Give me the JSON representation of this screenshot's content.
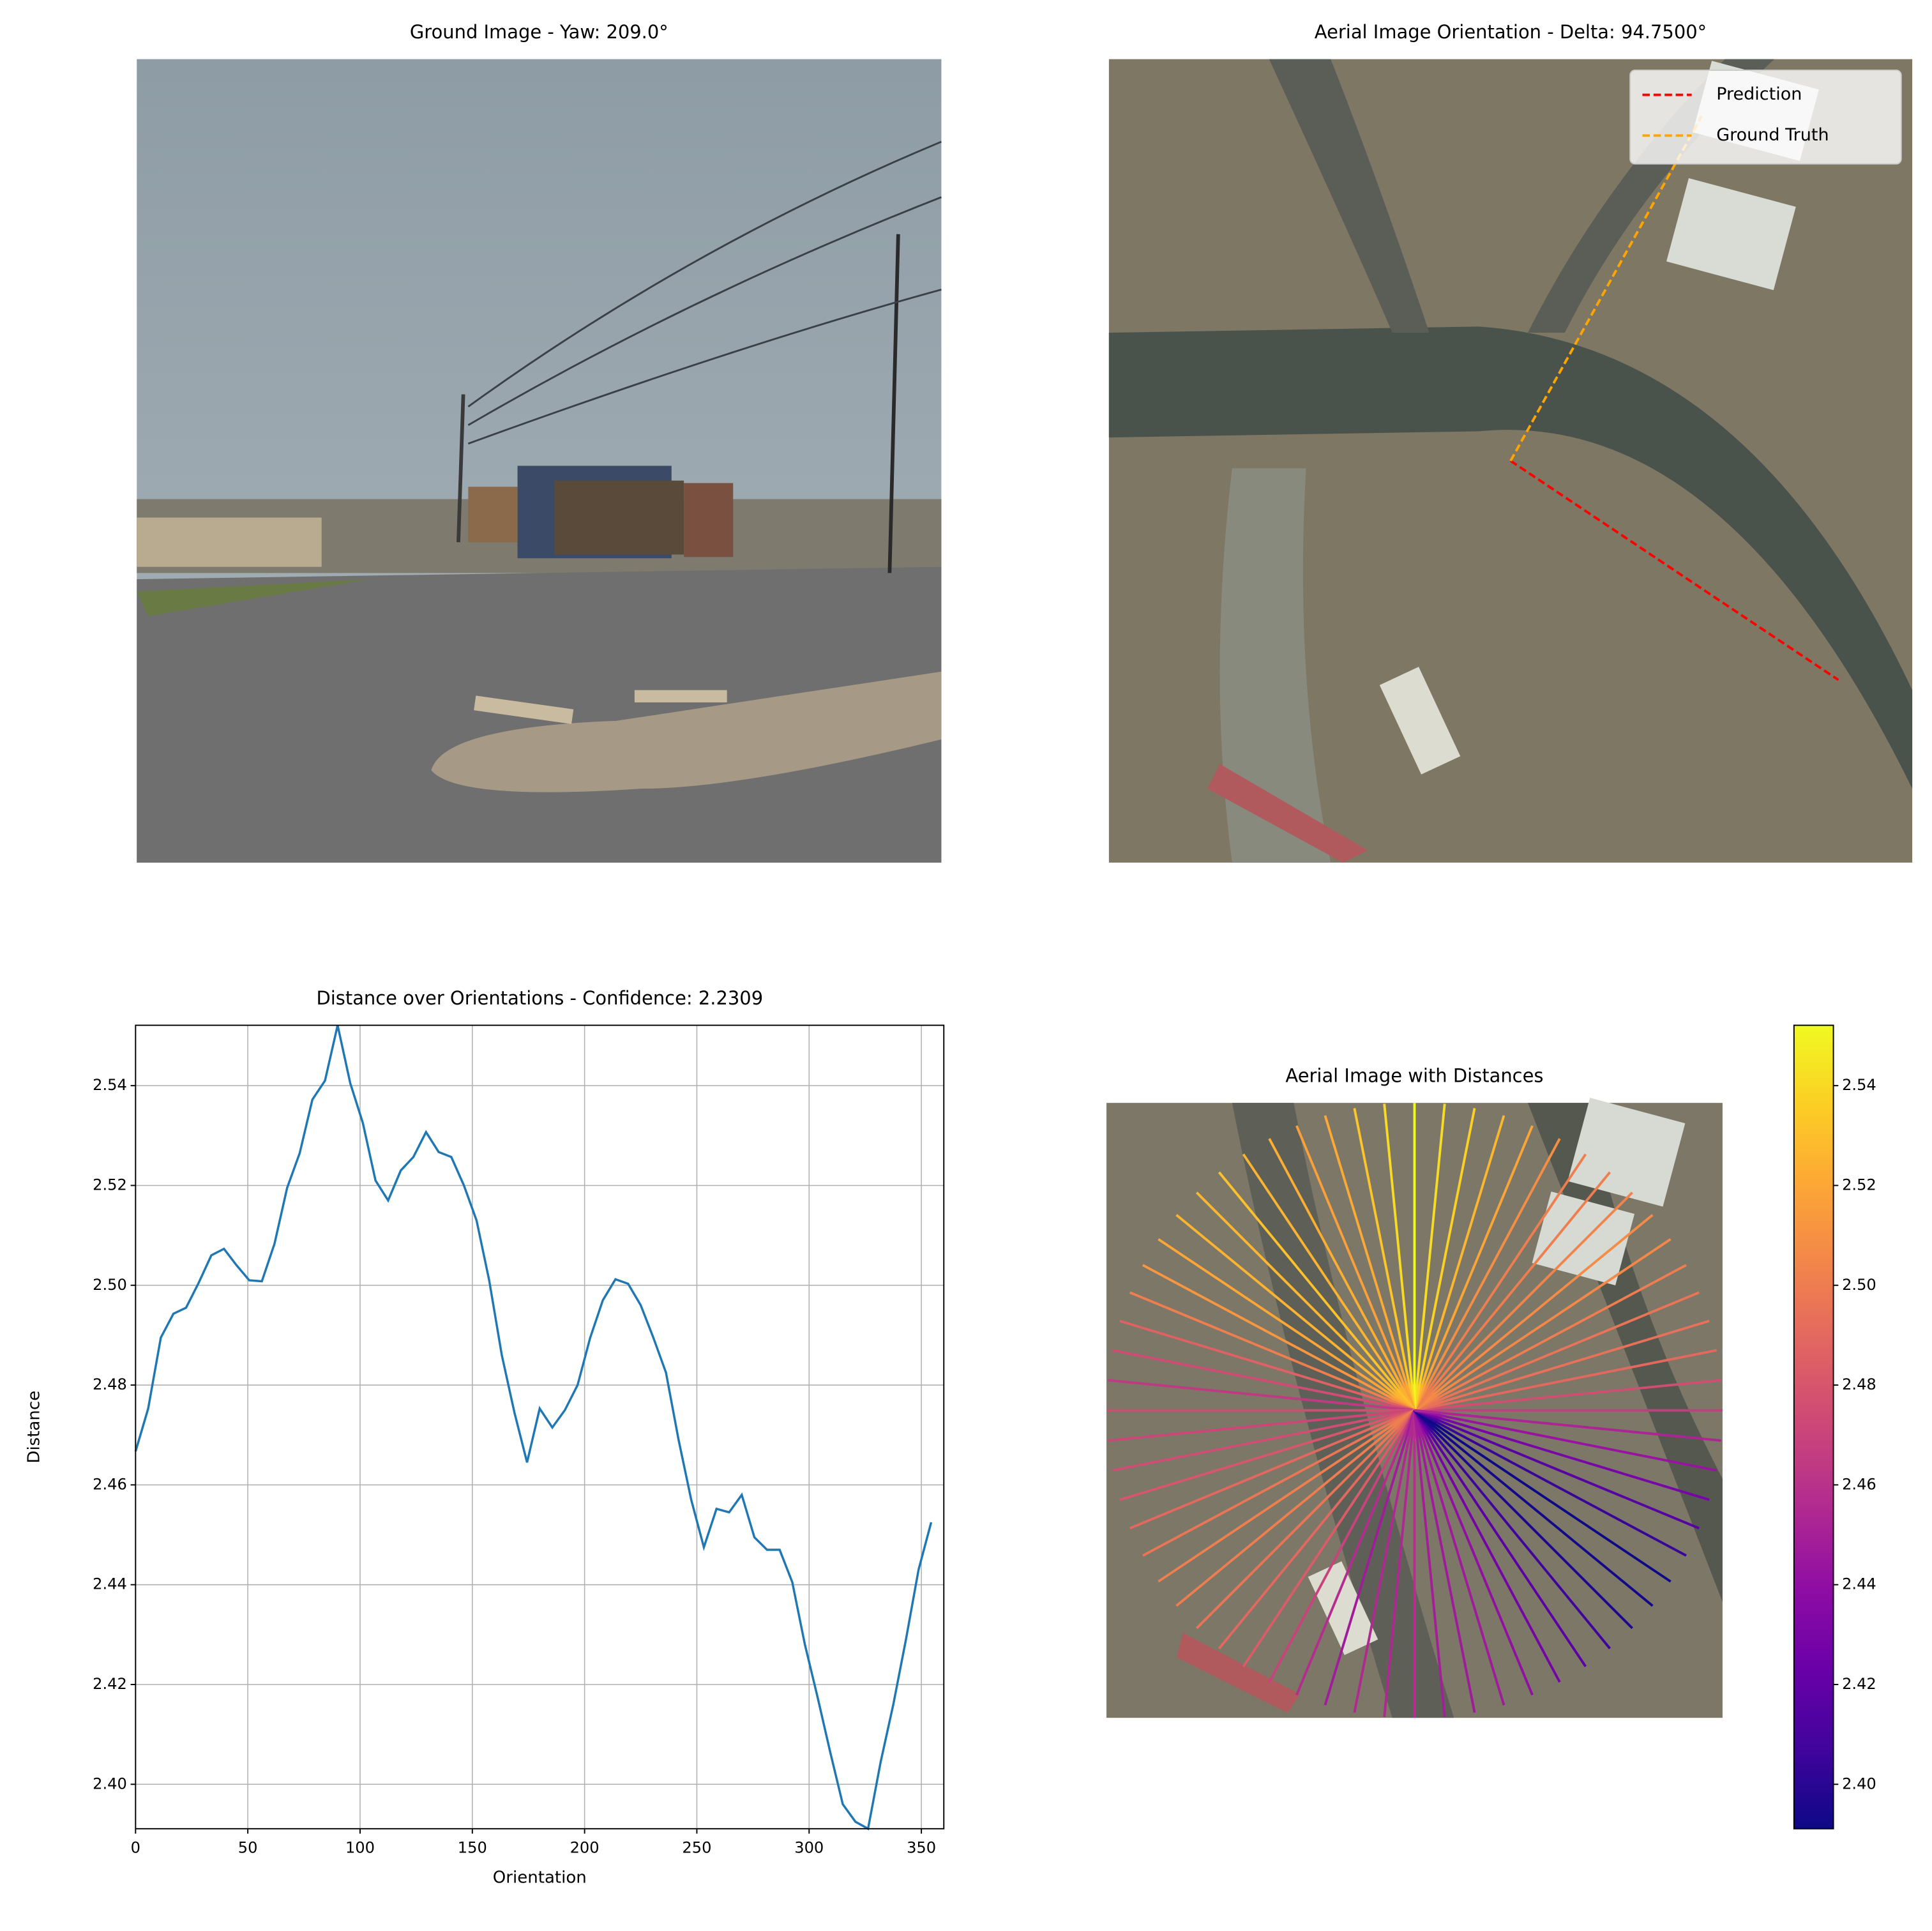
{
  "chart_data": [
    {
      "type": "image",
      "title": "Ground Image - Yaw: 209.0°"
    },
    {
      "type": "image",
      "title": "Aerial Image Orientation - Delta: 94.7500°",
      "legend": "upper right",
      "series": [
        {
          "name": "Prediction",
          "color": "#ff0000",
          "linestyle": "dashed",
          "angle": 326.25
        },
        {
          "name": "Ground Truth",
          "color": "#ffa500",
          "linestyle": "dashed",
          "angle": 61
        }
      ]
    },
    {
      "type": "line",
      "title": "Distance over Orientations - Confidence: 2.2309",
      "x_label": "Orientation",
      "y_label": "Distance",
      "grid": true,
      "xlim": [
        0,
        360
      ],
      "xticks": [
        0,
        50,
        100,
        150,
        200,
        250,
        300,
        350
      ],
      "ylim": [
        2.3911,
        2.5521
      ],
      "yticks": [
        {
          "value": 2.4,
          "label": "2.40"
        },
        2.42,
        2.44,
        2.46,
        2.48,
        {
          "value": 2.5,
          "label": "2.50"
        },
        2.52,
        2.54
      ],
      "x": [
        0,
        5.625,
        11.25,
        16.875,
        22.5,
        28.125,
        33.75,
        39.375,
        45,
        50.625,
        56.25,
        61.875,
        67.5,
        73.125,
        78.75,
        84.375,
        90,
        95.625,
        101.25,
        106.875,
        112.5,
        118.125,
        123.75,
        129.375,
        135,
        140.625,
        146.25,
        151.875,
        157.5,
        163.125,
        168.75,
        174.375,
        180,
        185.625,
        191.25,
        196.875,
        202.5,
        208.125,
        213.75,
        219.375,
        225,
        230.625,
        236.25,
        241.875,
        247.5,
        253.125,
        258.75,
        264.375,
        270,
        275.625,
        281.25,
        286.875,
        292.5,
        298.125,
        303.75,
        309.375,
        315,
        320.625,
        326.25,
        331.875,
        337.5,
        343.125,
        348.75,
        354.375
      ],
      "series": [
        {
          "name": "Distance",
          "color": "#1f77b4",
          "values": [
            2.4667,
            2.4753,
            2.4895,
            2.4943,
            2.4955,
            2.5005,
            2.506,
            2.5073,
            2.504,
            2.501,
            2.5008,
            2.5083,
            2.5195,
            2.5265,
            2.5372,
            2.541,
            2.5521,
            2.5405,
            2.5325,
            2.521,
            2.517,
            2.523,
            2.5257,
            2.5307,
            2.5267,
            2.5257,
            2.52,
            2.513,
            2.501,
            2.486,
            2.4745,
            2.4645,
            2.4753,
            2.4715,
            2.475,
            2.48,
            2.4895,
            2.497,
            2.5012,
            2.5003,
            2.496,
            2.4895,
            2.4825,
            2.469,
            2.457,
            2.4475,
            2.4552,
            2.4545,
            2.458,
            2.4495,
            2.447,
            2.447,
            2.4405,
            2.428,
            2.4175,
            2.4065,
            2.396,
            2.3925,
            2.3911,
            2.4045,
            2.416,
            2.429,
            2.443,
            2.4525
          ]
        }
      ]
    },
    {
      "type": "rays",
      "title": "Aerial Image with Distances",
      "colormap": "plasma",
      "clim": [
        2.3911,
        2.5521
      ],
      "cticks": [
        {
          "value": 2.4,
          "label": "2.40"
        },
        2.42,
        2.44,
        2.46,
        2.48,
        {
          "value": 2.5,
          "label": "2.50"
        },
        2.52,
        2.54
      ]
    }
  ]
}
